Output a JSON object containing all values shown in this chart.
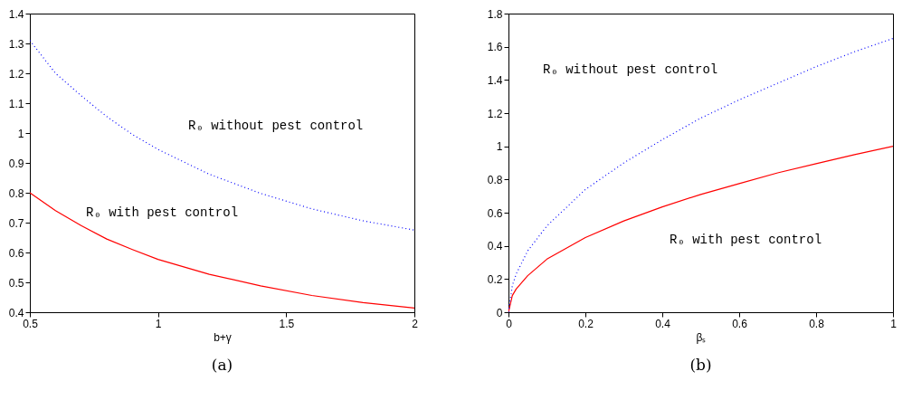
{
  "chart_data": [
    {
      "type": "line",
      "title": "(a)",
      "xlabel": "b+γ",
      "xlim": [
        0.5,
        2
      ],
      "xticks": [
        0.5,
        1,
        1.5,
        2
      ],
      "ylim": [
        0.4,
        1.4
      ],
      "yticks": [
        0.4,
        0.5,
        0.6,
        0.7,
        0.8,
        0.9,
        1,
        1.1,
        1.2,
        1.3,
        1.4
      ],
      "grid": false,
      "series": [
        {
          "name": "R₀ with pest control",
          "color": "#ff0000",
          "line_style": "solid",
          "x": [
            0.5,
            0.6,
            0.7,
            0.8,
            0.9,
            1.0,
            1.2,
            1.4,
            1.6,
            1.8,
            2.0
          ],
          "values": [
            0.8,
            0.74,
            0.69,
            0.645,
            0.61,
            0.577,
            0.527,
            0.488,
            0.456,
            0.432,
            0.414
          ]
        },
        {
          "name": "R₀ without pest control",
          "color": "#0000ff",
          "line_style": "dotted",
          "x": [
            0.5,
            0.6,
            0.7,
            0.8,
            0.9,
            1.0,
            1.2,
            1.4,
            1.6,
            1.8,
            2.0
          ],
          "values": [
            1.31,
            1.2,
            1.125,
            1.055,
            0.995,
            0.945,
            0.862,
            0.798,
            0.746,
            0.706,
            0.675
          ]
        }
      ]
    },
    {
      "type": "line",
      "title": "(b)",
      "xlabel": "βₛ",
      "xlim": [
        0,
        1
      ],
      "xticks": [
        0,
        0.2,
        0.4,
        0.6,
        0.8,
        1
      ],
      "ylim": [
        0,
        1.8
      ],
      "yticks": [
        0,
        0.2,
        0.4,
        0.6,
        0.8,
        1,
        1.2,
        1.4,
        1.6,
        1.8
      ],
      "grid": false,
      "series": [
        {
          "name": "R₀ with pest control",
          "color": "#ff0000",
          "line_style": "solid",
          "x": [
            0,
            0.01,
            0.02,
            0.05,
            0.1,
            0.2,
            0.3,
            0.4,
            0.5,
            0.6,
            0.7,
            0.8,
            0.9,
            1.0
          ],
          "values": [
            0,
            0.1,
            0.14,
            0.22,
            0.32,
            0.45,
            0.55,
            0.635,
            0.71,
            0.775,
            0.84,
            0.895,
            0.95,
            1.0
          ]
        },
        {
          "name": "R₀ without pest control",
          "color": "#0000ff",
          "line_style": "dotted",
          "x": [
            0,
            0.01,
            0.02,
            0.05,
            0.1,
            0.2,
            0.3,
            0.4,
            0.5,
            0.6,
            0.7,
            0.8,
            0.9,
            1.0
          ],
          "values": [
            0,
            0.16,
            0.23,
            0.37,
            0.52,
            0.74,
            0.9,
            1.04,
            1.17,
            1.28,
            1.38,
            1.48,
            1.57,
            1.65
          ]
        }
      ]
    }
  ]
}
